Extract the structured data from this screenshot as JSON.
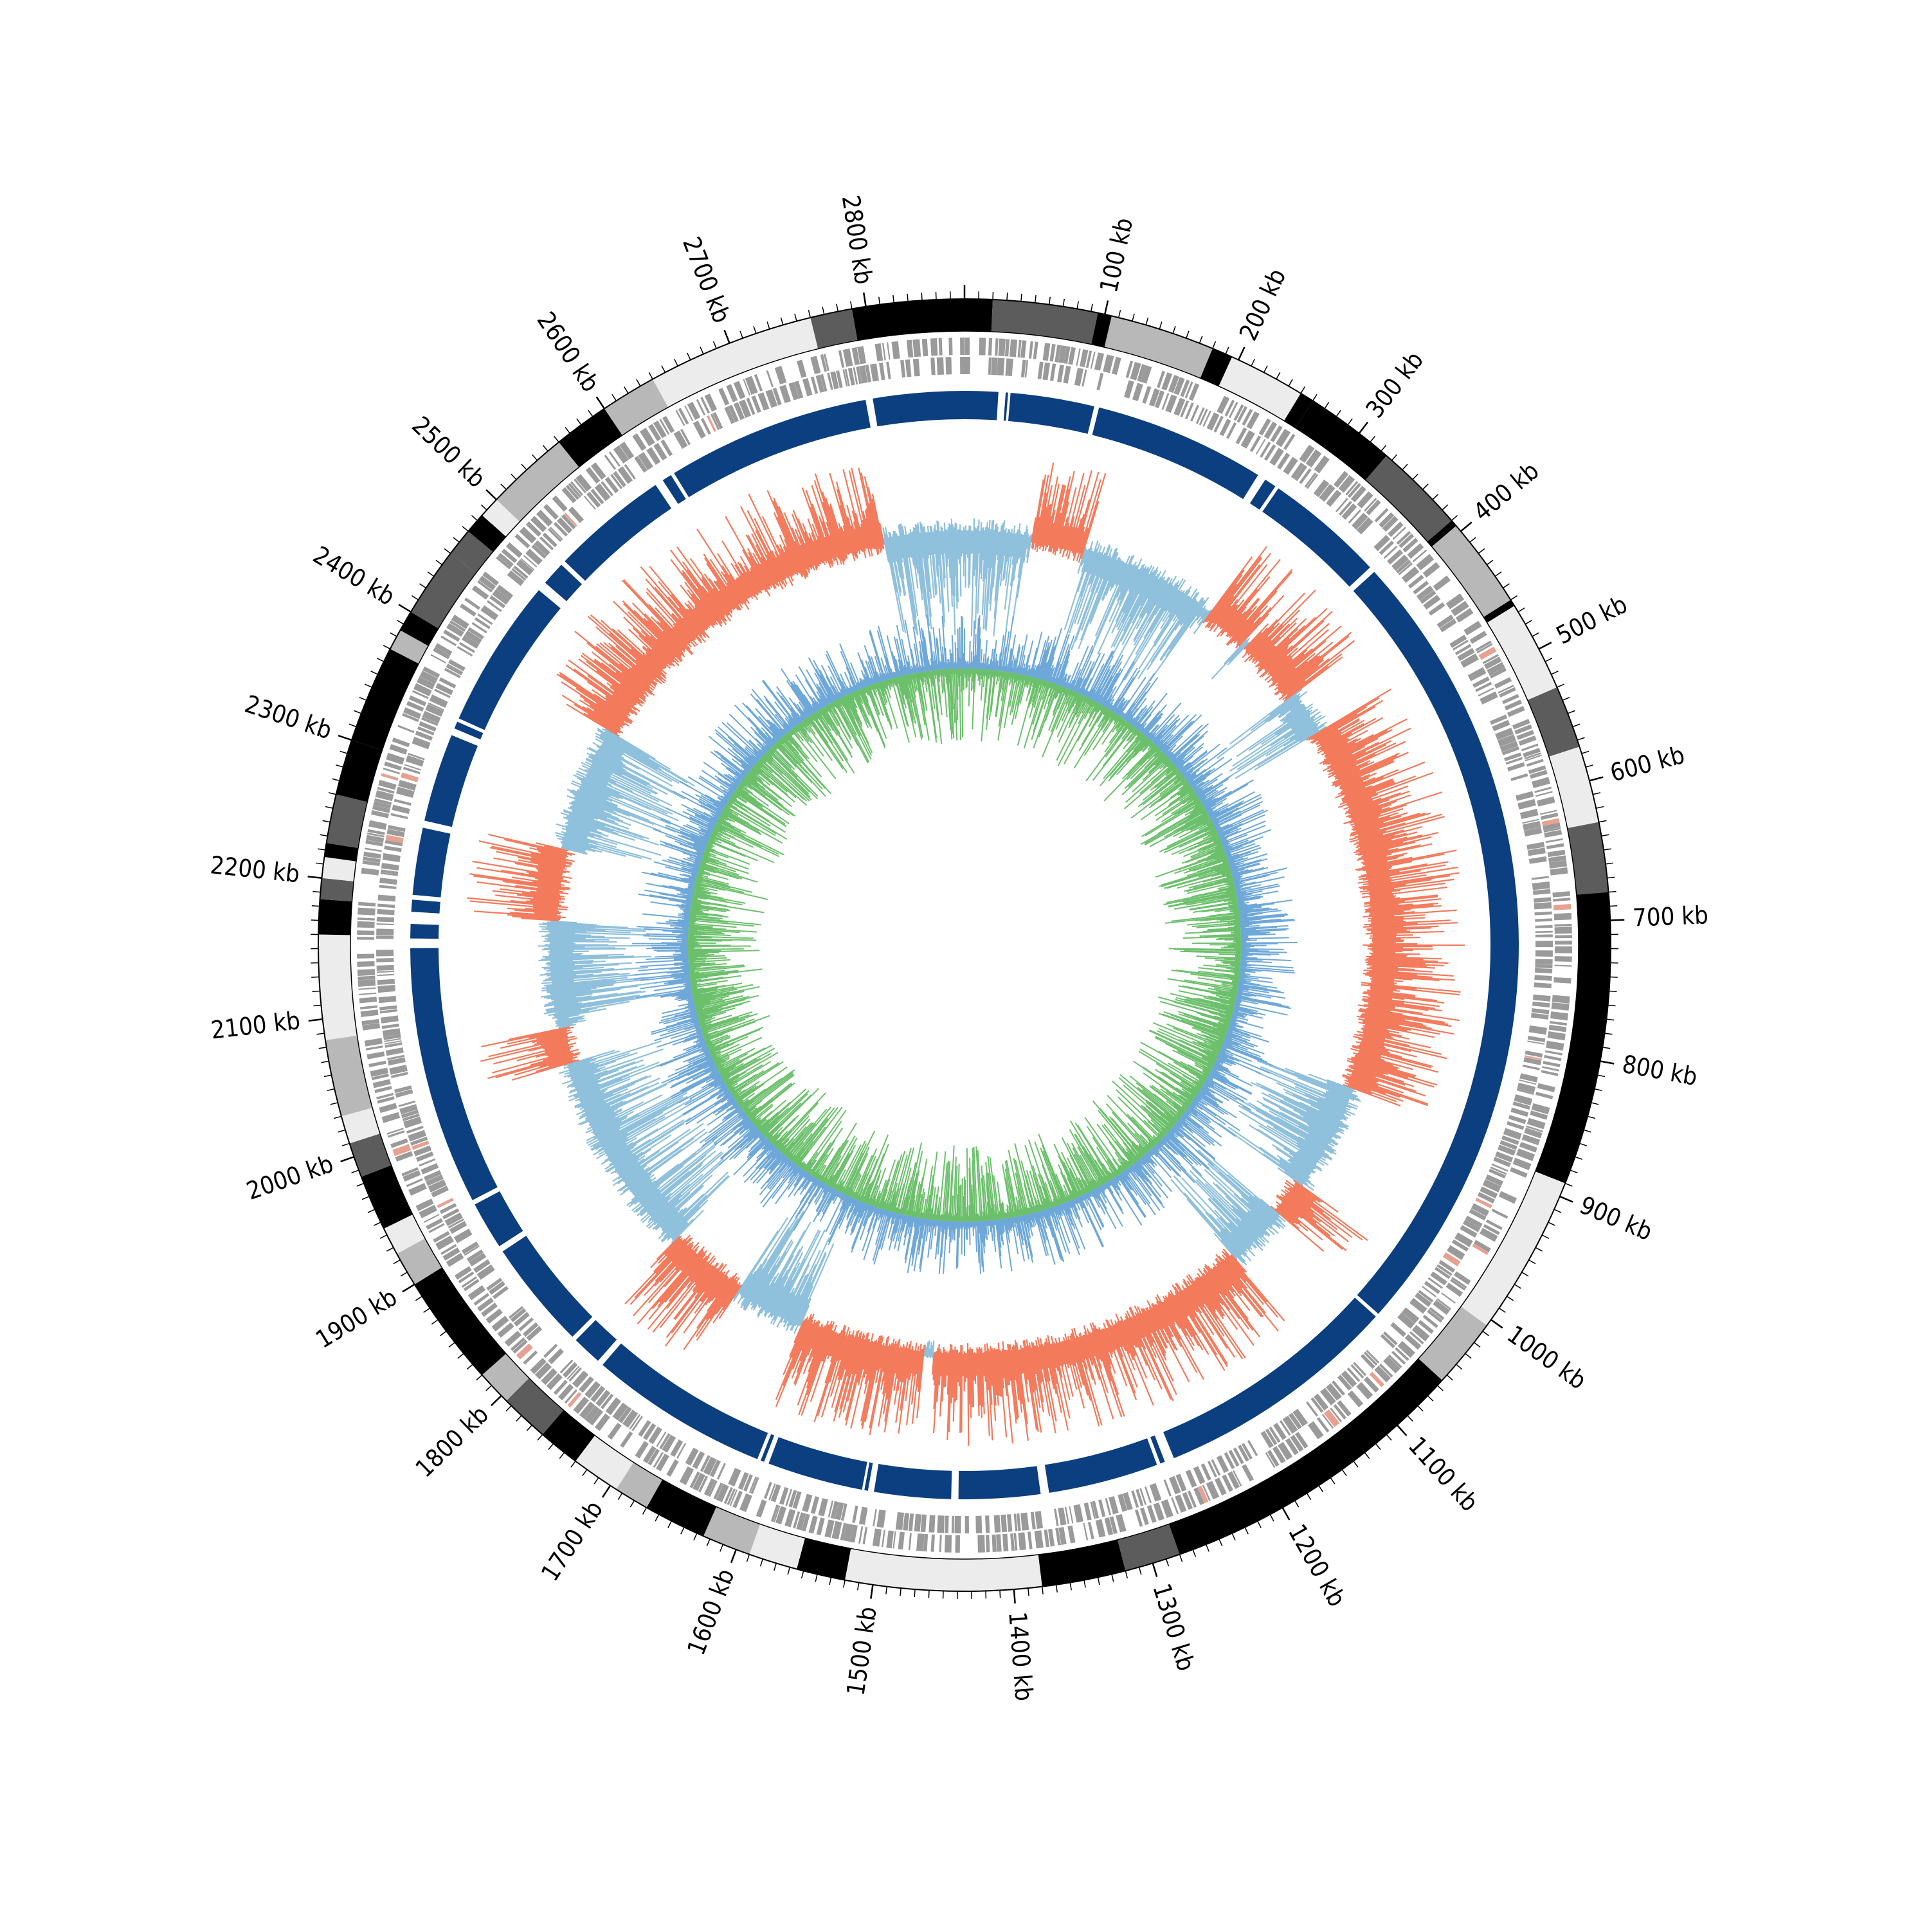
{
  "genome": {
    "length_kb": 2870,
    "tick_labels": [
      "100 kb",
      "200 kb",
      "300 kb",
      "400 kb",
      "500 kb",
      "600 kb",
      "700 kb",
      "800 kb",
      "900 kb",
      "1000 kb",
      "1100 kb",
      "1200 kb",
      "1300 kb",
      "1400 kb",
      "1500 kb",
      "1600 kb",
      "1700 kb",
      "1800 kb",
      "1900 kb",
      "2000 kb",
      "2100 kb",
      "2200 kb",
      "2300 kb",
      "2400 kb",
      "2500 kb",
      "2600 kb",
      "2700 kb",
      "2800 kb"
    ],
    "tick_positions_kb": [
      100,
      200,
      300,
      400,
      500,
      600,
      700,
      800,
      900,
      1000,
      1100,
      1200,
      1300,
      1400,
      1500,
      1600,
      1700,
      1800,
      1900,
      2000,
      2100,
      2200,
      2300,
      2400,
      2500,
      2600,
      2700,
      2800
    ],
    "minor_tick_step_kb": 10
  },
  "colors": {
    "band_black": "#000000",
    "band_dark": "#5c5c5c",
    "band_mid": "#b8b8b8",
    "band_light": "#ececec",
    "gene_grey": "#9a9a9a",
    "gene_red": "#e8a090",
    "core_blue": "#0b3f80",
    "light_blue": "#8fc0dc",
    "salmon": "#f47a5c",
    "mid_blue": "#6ea8d8",
    "green": "#6cc06c"
  },
  "tracks": {
    "bands": [
      {
        "start": 0,
        "end": 20,
        "shade": "black"
      },
      {
        "start": 20,
        "end": 95,
        "shade": "dark"
      },
      {
        "start": 95,
        "end": 105,
        "shade": "black"
      },
      {
        "start": 105,
        "end": 180,
        "shade": "mid"
      },
      {
        "start": 180,
        "end": 195,
        "shade": "black"
      },
      {
        "start": 195,
        "end": 250,
        "shade": "light"
      },
      {
        "start": 250,
        "end": 260,
        "shade": "black"
      },
      {
        "start": 260,
        "end": 325,
        "shade": "black"
      },
      {
        "start": 325,
        "end": 390,
        "shade": "dark"
      },
      {
        "start": 390,
        "end": 395,
        "shade": "black"
      },
      {
        "start": 395,
        "end": 460,
        "shade": "mid"
      },
      {
        "start": 460,
        "end": 465,
        "shade": "black"
      },
      {
        "start": 465,
        "end": 530,
        "shade": "light"
      },
      {
        "start": 530,
        "end": 575,
        "shade": "dark"
      },
      {
        "start": 575,
        "end": 630,
        "shade": "light"
      },
      {
        "start": 630,
        "end": 680,
        "shade": "dark"
      },
      {
        "start": 680,
        "end": 890,
        "shade": "black"
      },
      {
        "start": 890,
        "end": 955,
        "shade": "light"
      },
      {
        "start": 955,
        "end": 1005,
        "shade": "light"
      },
      {
        "start": 1005,
        "end": 1055,
        "shade": "mid"
      },
      {
        "start": 1055,
        "end": 1280,
        "shade": "black"
      },
      {
        "start": 1280,
        "end": 1320,
        "shade": "dark"
      },
      {
        "start": 1320,
        "end": 1380,
        "shade": "black"
      },
      {
        "start": 1380,
        "end": 1520,
        "shade": "light"
      },
      {
        "start": 1520,
        "end": 1555,
        "shade": "black"
      },
      {
        "start": 1555,
        "end": 1590,
        "shade": "light"
      },
      {
        "start": 1590,
        "end": 1625,
        "shade": "mid"
      },
      {
        "start": 1625,
        "end": 1670,
        "shade": "black"
      },
      {
        "start": 1670,
        "end": 1695,
        "shade": "mid"
      },
      {
        "start": 1695,
        "end": 1730,
        "shade": "light"
      },
      {
        "start": 1730,
        "end": 1760,
        "shade": "black"
      },
      {
        "start": 1760,
        "end": 1795,
        "shade": "dark"
      },
      {
        "start": 1795,
        "end": 1820,
        "shade": "mid"
      },
      {
        "start": 1820,
        "end": 1900,
        "shade": "black"
      },
      {
        "start": 1900,
        "end": 1925,
        "shade": "mid"
      },
      {
        "start": 1925,
        "end": 1945,
        "shade": "light"
      },
      {
        "start": 1945,
        "end": 1985,
        "shade": "black"
      },
      {
        "start": 1985,
        "end": 2010,
        "shade": "dark"
      },
      {
        "start": 2010,
        "end": 2030,
        "shade": "light"
      },
      {
        "start": 2030,
        "end": 2085,
        "shade": "mid"
      },
      {
        "start": 2085,
        "end": 2160,
        "shade": "light"
      },
      {
        "start": 2160,
        "end": 2185,
        "shade": "black"
      },
      {
        "start": 2185,
        "end": 2200,
        "shade": "dark"
      },
      {
        "start": 2200,
        "end": 2215,
        "shade": "light"
      },
      {
        "start": 2215,
        "end": 2225,
        "shade": "black"
      },
      {
        "start": 2225,
        "end": 2260,
        "shade": "dark"
      },
      {
        "start": 2260,
        "end": 2300,
        "shade": "black"
      },
      {
        "start": 2300,
        "end": 2370,
        "shade": "black"
      },
      {
        "start": 2370,
        "end": 2385,
        "shade": "mid"
      },
      {
        "start": 2385,
        "end": 2400,
        "shade": "black"
      },
      {
        "start": 2400,
        "end": 2450,
        "shade": "dark"
      },
      {
        "start": 2450,
        "end": 2470,
        "shade": "dark"
      },
      {
        "start": 2470,
        "end": 2485,
        "shade": "black"
      },
      {
        "start": 2485,
        "end": 2500,
        "shade": "light"
      },
      {
        "start": 2500,
        "end": 2560,
        "shade": "mid"
      },
      {
        "start": 2560,
        "end": 2600,
        "shade": "black"
      },
      {
        "start": 2600,
        "end": 2640,
        "shade": "mid"
      },
      {
        "start": 2640,
        "end": 2690,
        "shade": "light"
      },
      {
        "start": 2690,
        "end": 2760,
        "shade": "light"
      },
      {
        "start": 2760,
        "end": 2790,
        "shade": "dark"
      },
      {
        "start": 2790,
        "end": 2870,
        "shade": "black"
      }
    ],
    "core_gaps": [
      {
        "start": 28,
        "end": 34
      },
      {
        "start": 36,
        "end": 38
      },
      {
        "start": 108,
        "end": 112
      },
      {
        "start": 255,
        "end": 262
      },
      {
        "start": 272,
        "end": 275
      },
      {
        "start": 375,
        "end": 380
      },
      {
        "start": 1050,
        "end": 1053
      },
      {
        "start": 1258,
        "end": 1266
      },
      {
        "start": 1270,
        "end": 1273
      },
      {
        "start": 1365,
        "end": 1372
      },
      {
        "start": 1440,
        "end": 1446
      },
      {
        "start": 1510,
        "end": 1515
      },
      {
        "start": 1518,
        "end": 1520
      },
      {
        "start": 1600,
        "end": 1604
      },
      {
        "start": 1607,
        "end": 1610
      },
      {
        "start": 1760,
        "end": 1765
      },
      {
        "start": 1790,
        "end": 1794
      },
      {
        "start": 1885,
        "end": 1890
      },
      {
        "start": 1930,
        "end": 1934
      },
      {
        "start": 2150,
        "end": 2158
      },
      {
        "start": 2170,
        "end": 2180
      },
      {
        "start": 2190,
        "end": 2194
      },
      {
        "start": 2250,
        "end": 2256
      },
      {
        "start": 2330,
        "end": 2336
      },
      {
        "start": 2342,
        "end": 2345
      },
      {
        "start": 2470,
        "end": 2478
      },
      {
        "start": 2498,
        "end": 2502
      },
      {
        "start": 2600,
        "end": 2607
      },
      {
        "start": 2615,
        "end": 2618
      },
      {
        "start": 2788,
        "end": 2794
      }
    ],
    "lightblue_regions": [
      {
        "start": 2780,
        "end": 2870
      },
      {
        "start": 0,
        "end": 70
      },
      {
        "start": 140,
        "end": 280
      },
      {
        "start": 320,
        "end": 430
      },
      {
        "start": 440,
        "end": 470
      },
      {
        "start": 880,
        "end": 1000
      },
      {
        "start": 1040,
        "end": 1110
      },
      {
        "start": 1480,
        "end": 1700
      },
      {
        "start": 1790,
        "end": 2020
      },
      {
        "start": 2070,
        "end": 2180
      },
      {
        "start": 2260,
        "end": 2420
      },
      {
        "start": 2500,
        "end": 2540
      }
    ],
    "salmon_regions": [
      {
        "start": 75,
        "end": 135
      },
      {
        "start": 290,
        "end": 340
      },
      {
        "start": 345,
        "end": 420
      },
      {
        "start": 470,
        "end": 880
      },
      {
        "start": 1000,
        "end": 1040
      },
      {
        "start": 1110,
        "end": 1470
      },
      {
        "start": 1480,
        "end": 1620
      },
      {
        "start": 1700,
        "end": 1790
      },
      {
        "start": 2020,
        "end": 2060
      },
      {
        "start": 2180,
        "end": 2260
      },
      {
        "start": 2400,
        "end": 2780
      }
    ]
  }
}
